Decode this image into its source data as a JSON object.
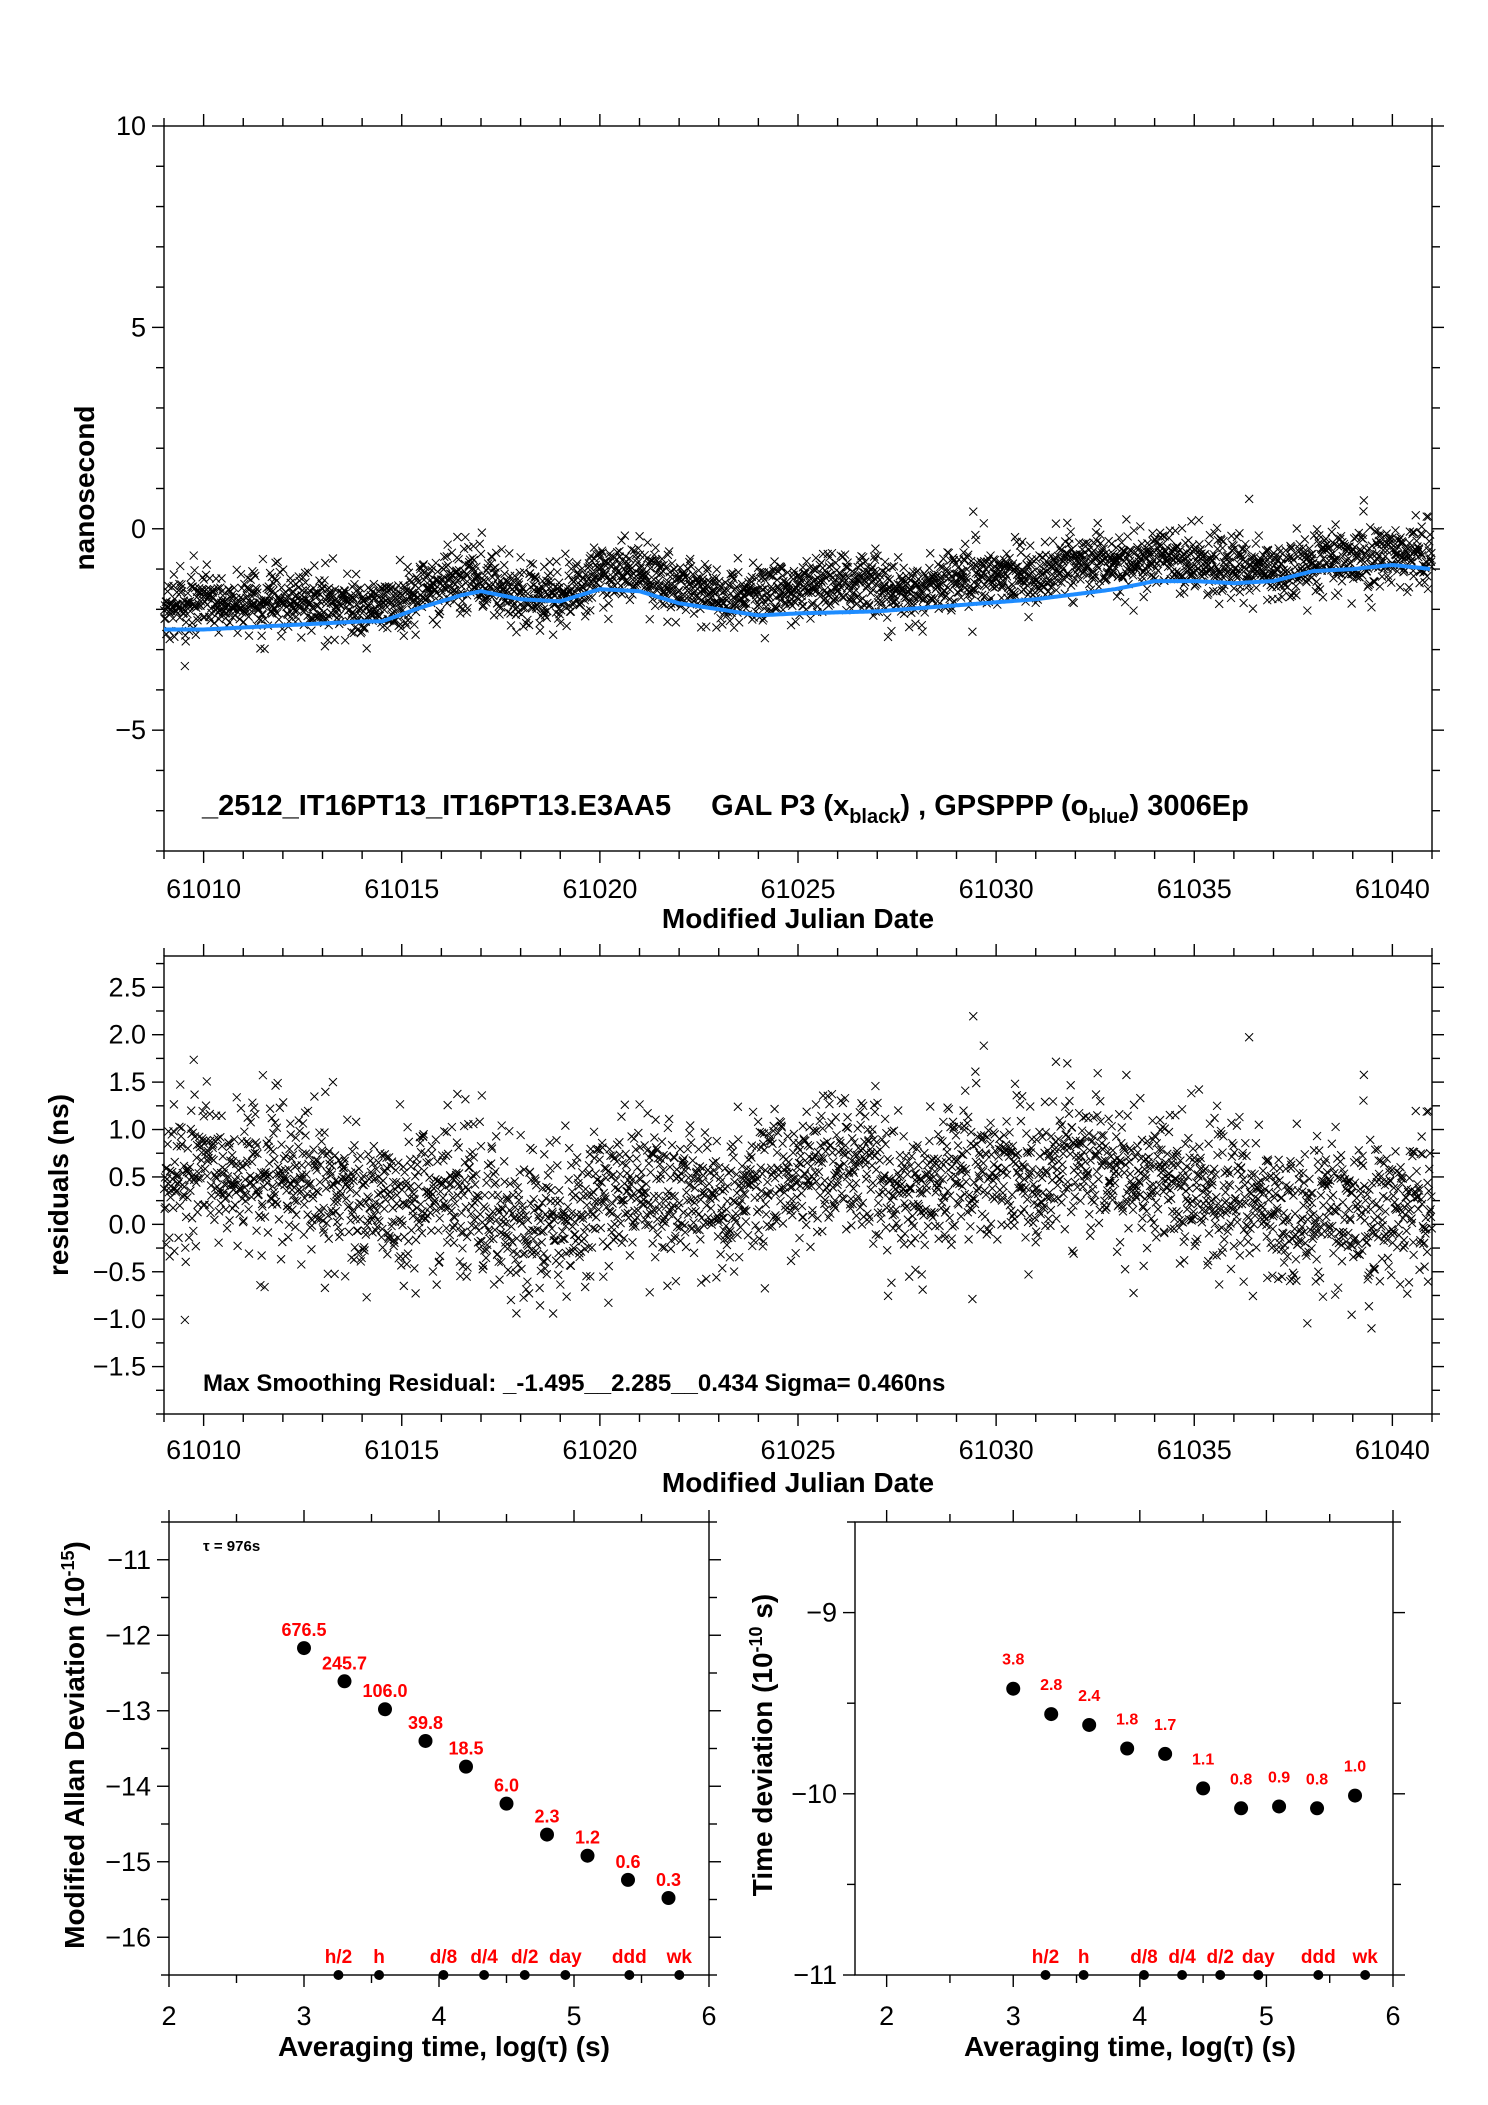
{
  "colors": {
    "black_series": "#000000",
    "blue_series": "#1e8cff",
    "annotation": "#ff0000"
  },
  "chart_data": [
    {
      "id": "timeseries",
      "type": "scatter",
      "title_parts": {
        "name": "_2512_IT16PT13_IT16PT13.E3AA5",
        "series_a": "GAL P3 (x",
        "series_a_sub": "black",
        "sep": ") ,  GPSPPP (o",
        "series_b_sub": "blue",
        "tail": ")  3006Ep"
      },
      "xlabel": "Modified Julian Date",
      "ylabel": "nanosecond",
      "xlim": [
        61009,
        61041
      ],
      "ylim": [
        -8,
        10
      ],
      "xticks": [
        61010,
        61015,
        61020,
        61025,
        61030,
        61035,
        61040
      ],
      "yticks": [
        10,
        5,
        0,
        -5
      ],
      "ytick_labels": [
        "10",
        "5",
        "0",
        "−5"
      ],
      "epochs": 3006,
      "series": [
        {
          "marker": "x",
          "color": "#000000",
          "note_value": "GAL P3"
        },
        {
          "marker": "line",
          "color": "#1e8cff",
          "note_value": "GPSPPP",
          "x": [
            61009,
            61010,
            61011,
            61012,
            61013,
            61014,
            61014.5,
            61015.5,
            61016.5,
            61017,
            61018,
            61019,
            61020,
            61021,
            61022,
            61023,
            61024,
            61025,
            61027,
            61029,
            61031,
            61033,
            61034,
            61035,
            61036,
            61037,
            61038,
            61039,
            61040,
            61041
          ],
          "y": [
            -2.5,
            -2.5,
            -2.45,
            -2.4,
            -2.35,
            -2.3,
            -2.3,
            -1.95,
            -1.65,
            -1.55,
            -1.75,
            -1.8,
            -1.5,
            -1.55,
            -1.85,
            -2.0,
            -2.15,
            -2.1,
            -2.05,
            -1.9,
            -1.75,
            -1.5,
            -1.3,
            -1.3,
            -1.35,
            -1.3,
            -1.05,
            -1.0,
            -0.9,
            -1.0
          ]
        }
      ]
    },
    {
      "id": "residuals",
      "type": "scatter",
      "xlabel": "Modified Julian Date",
      "ylabel": "residuals (ns)",
      "xlim": [
        61009,
        61041
      ],
      "ylim": [
        -2.0,
        2.83
      ],
      "xticks": [
        61010,
        61015,
        61020,
        61025,
        61030,
        61035,
        61040
      ],
      "yticks": [
        2.5,
        2.0,
        1.5,
        1.0,
        0.5,
        0.0,
        -0.5,
        -1.0,
        -1.5
      ],
      "ytick_labels": [
        "2.5",
        "2.0",
        "1.5",
        "1.0",
        "0.5",
        "0.0",
        "−0.5",
        "−1.0",
        "−1.5"
      ],
      "annotation": "Max Smoothing Residual: _-1.495__2.285__0.434  Sigma= 0.460ns",
      "min": -1.495,
      "max": 2.285,
      "mean": 0.434,
      "sigma": 0.46,
      "trend_x": [
        61009,
        61010,
        61011,
        61012,
        61013,
        61014,
        61015,
        61016,
        61017,
        61018,
        61019,
        61020,
        61021,
        61022,
        61023,
        61024,
        61025,
        61026,
        61027,
        61028,
        61029,
        61030,
        61031,
        61032,
        61033,
        61034,
        61035,
        61036,
        61037,
        61038,
        61039,
        61040,
        61041
      ],
      "trend_y": [
        0.4,
        0.6,
        0.5,
        0.5,
        0.4,
        0.2,
        0.3,
        0.3,
        0.2,
        -0.1,
        0.0,
        0.3,
        0.4,
        0.3,
        0.2,
        0.4,
        0.6,
        0.7,
        0.5,
        0.4,
        0.5,
        0.6,
        0.5,
        0.7,
        0.6,
        0.5,
        0.4,
        0.3,
        0.2,
        0.1,
        0.1,
        0.2,
        0.3
      ]
    },
    {
      "id": "mdev",
      "type": "scatter",
      "xlabel": "Averaging time, log(τ) (s)",
      "ylabel": "Modified Allan Deviation (10",
      "ylabel_sup": "-15",
      "ylabel_end": ")",
      "note": "τ = 976s",
      "xlim": [
        2,
        6
      ],
      "ylim": [
        -16.5,
        -10.5
      ],
      "xticks": [
        2,
        3,
        4,
        5,
        6
      ],
      "yticks": [
        -11,
        -12,
        -13,
        -14,
        -15,
        -16
      ],
      "ytick_labels": [
        "−11",
        "−12",
        "−13",
        "−14",
        "−15",
        "−16"
      ],
      "x": [
        3.0,
        3.3,
        3.6,
        3.9,
        4.2,
        4.5,
        4.8,
        5.1,
        5.4,
        5.7
      ],
      "y": [
        -12.17,
        -12.61,
        -12.98,
        -13.4,
        -13.74,
        -14.23,
        -14.64,
        -14.92,
        -15.24,
        -15.48
      ],
      "labels": [
        "676.5",
        "245.7",
        "106.0",
        "39.8",
        "18.5",
        "6.0",
        "2.3",
        "1.2",
        "0.6",
        "0.3"
      ],
      "markers": {
        "x": [
          3.255,
          3.556,
          4.033,
          4.334,
          4.635,
          4.936,
          5.41,
          5.78
        ],
        "labels": [
          "h/2",
          "h",
          "d/8",
          "d/4",
          "d/2",
          "day",
          "ddd",
          "wk"
        ]
      }
    },
    {
      "id": "tdev",
      "type": "scatter",
      "xlabel": "Averaging time, log(τ) (s)",
      "ylabel": "Time deviation (10",
      "ylabel_sup": "-10",
      "ylabel_end": " s)",
      "xlim": [
        1.75,
        6
      ],
      "ylim": [
        -11,
        -8.5
      ],
      "xticks": [
        2,
        3,
        4,
        5,
        6
      ],
      "yticks": [
        -9,
        -10,
        -11
      ],
      "ytick_labels": [
        "−9",
        "−10",
        "−11"
      ],
      "x": [
        3.0,
        3.3,
        3.6,
        3.9,
        4.2,
        4.5,
        4.8,
        5.1,
        5.4,
        5.7
      ],
      "y": [
        -9.42,
        -9.56,
        -9.62,
        -9.75,
        -9.78,
        -9.97,
        -10.08,
        -10.07,
        -10.08,
        -10.01
      ],
      "labels": [
        "3.8",
        "2.8",
        "2.4",
        "1.8",
        "1.7",
        "1.1",
        "0.8",
        "0.9",
        "0.8",
        "1.0"
      ],
      "markers": {
        "x": [
          3.255,
          3.556,
          4.033,
          4.334,
          4.635,
          4.936,
          5.41,
          5.78
        ],
        "labels": [
          "h/2",
          "h",
          "d/8",
          "d/4",
          "d/2",
          "day",
          "ddd",
          "wk"
        ]
      }
    }
  ]
}
